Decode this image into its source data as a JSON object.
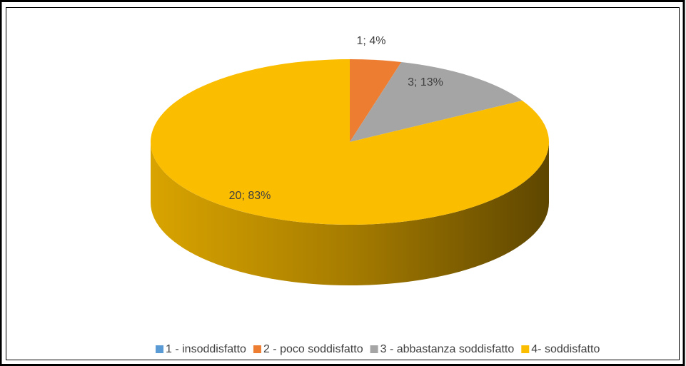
{
  "chart_data": {
    "type": "pie3d",
    "categories": [
      "1 - insoddisfatto",
      "2 - poco soddisfatto",
      "3 - abbastanza soddisfatto",
      "4- soddisfatto"
    ],
    "values": [
      0,
      1,
      3,
      20
    ],
    "value_labels": [
      null,
      "1; 4%",
      "3; 13%",
      "20; 83%"
    ],
    "colors": [
      "#5b9bd5",
      "#ed7d31",
      "#a5a5a5",
      "#fabd00"
    ],
    "legend": "bottom"
  }
}
